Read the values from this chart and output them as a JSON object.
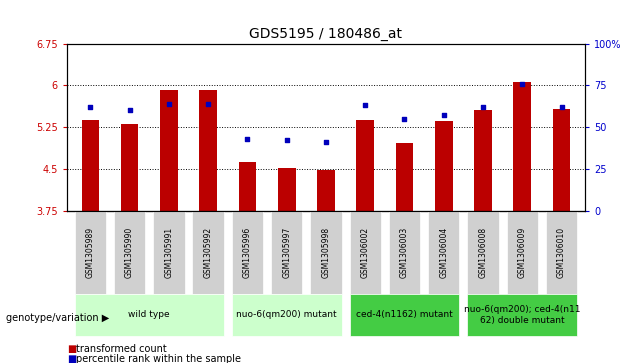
{
  "title": "GDS5195 / 180486_at",
  "samples": [
    "GSM1305989",
    "GSM1305990",
    "GSM1305991",
    "GSM1305992",
    "GSM1305996",
    "GSM1305997",
    "GSM1305998",
    "GSM1306002",
    "GSM1306003",
    "GSM1306004",
    "GSM1306008",
    "GSM1306009",
    "GSM1306010"
  ],
  "bar_values": [
    5.38,
    5.31,
    5.92,
    5.92,
    4.62,
    4.51,
    4.47,
    5.38,
    4.97,
    5.36,
    5.56,
    6.06,
    5.57
  ],
  "dot_values": [
    62,
    60,
    64,
    64,
    43,
    42,
    41,
    63,
    55,
    57,
    62,
    76,
    62
  ],
  "bar_base": 3.75,
  "ylim_left": [
    3.75,
    6.75
  ],
  "ylim_right": [
    0,
    100
  ],
  "yticks_left": [
    3.75,
    4.5,
    5.25,
    6.0,
    6.75
  ],
  "ytick_labels_left": [
    "3.75",
    "4.5",
    "5.25",
    "6",
    "6.75"
  ],
  "yticks_right": [
    0,
    25,
    50,
    75,
    100
  ],
  "ytick_labels_right": [
    "0",
    "25",
    "50",
    "75",
    "100%"
  ],
  "bar_color": "#bb0000",
  "dot_color": "#0000bb",
  "bg_color": "#ffffff",
  "groups": [
    {
      "label": "wild type",
      "indices": [
        0,
        1,
        2,
        3
      ],
      "color": "#ccffcc"
    },
    {
      "label": "nuo-6(qm200) mutant",
      "indices": [
        4,
        5,
        6
      ],
      "color": "#ccffcc"
    },
    {
      "label": "ced-4(n1162) mutant",
      "indices": [
        7,
        8,
        9
      ],
      "color": "#44cc44"
    },
    {
      "label": "nuo-6(qm200); ced-4(n11\n62) double mutant",
      "indices": [
        10,
        11,
        12
      ],
      "color": "#44cc44"
    }
  ],
  "xlabel_group": "genotype/variation",
  "legend_transformed": "transformed count",
  "legend_percentile": "percentile rank within the sample",
  "tick_color_left": "#cc0000",
  "tick_color_right": "#0000cc",
  "title_fontsize": 10,
  "tick_fontsize": 7,
  "sample_fontsize": 5.5,
  "group_fontsize": 6.5,
  "legend_fontsize": 7
}
